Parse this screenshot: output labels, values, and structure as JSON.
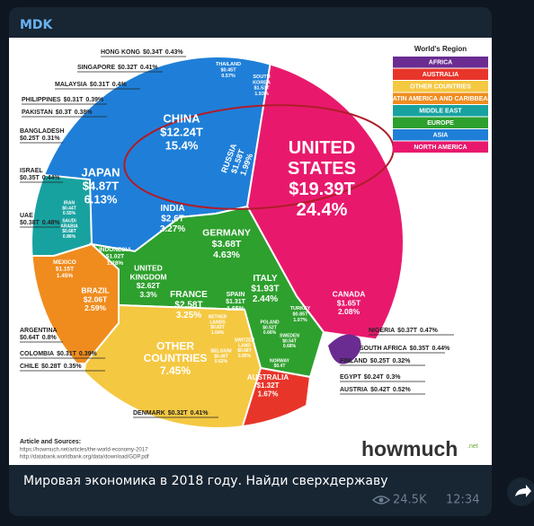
{
  "post": {
    "channel": "MDK",
    "caption": "Мировая экономика в 2018 году. Найди сверхдержаву",
    "views": "24.5K",
    "time": "12:34"
  },
  "infographic": {
    "legend_title": "World's Region",
    "regions": [
      {
        "name": "AFRICA",
        "color": "#6a2c91"
      },
      {
        "name": "AUSTRALIA",
        "color": "#e8352a"
      },
      {
        "name": "OTHER COUNTRIES",
        "color": "#f5c842"
      },
      {
        "name": "LATIN AMERICA AND CARIBBEAN",
        "color": "#f08c1e"
      },
      {
        "name": "MIDDLE EAST",
        "color": "#17a2a0"
      },
      {
        "name": "EUROPE",
        "color": "#2ea02e"
      },
      {
        "name": "ASIA",
        "color": "#1f7fd8"
      },
      {
        "name": "NORTH AMERICA",
        "color": "#e8196d"
      }
    ],
    "countries": [
      {
        "name": [
          "HONG KONG"
        ],
        "gdp": "$0.34T",
        "share": "0.43%"
      },
      {
        "name": [
          "SINGAPORE"
        ],
        "gdp": "$0.32T",
        "share": "0.41%"
      },
      {
        "name": [
          "MALAYSIA"
        ],
        "gdp": "$0.31T",
        "share": "0.4%"
      },
      {
        "name": [
          "PHILIPPINES"
        ],
        "gdp": "$0.31T",
        "share": "0.39%"
      },
      {
        "name": [
          "PAKISTAN"
        ],
        "gdp": "$0.3T",
        "share": "0.38%"
      },
      {
        "name": [
          "BANGLADESH"
        ],
        "gdp": "$0.25T",
        "share": "0.31%"
      },
      {
        "name": [
          "ISRAEL"
        ],
        "gdp": "$0.35T",
        "share": "0.44%"
      },
      {
        "name": [
          "UAE"
        ],
        "gdp": "$0.38T",
        "share": "0.48%"
      },
      {
        "name": [
          "THAILAND"
        ],
        "gdp": "$0.45T",
        "share": "0.57%"
      },
      {
        "name": [
          "SOUTH",
          "KOREA"
        ],
        "gdp": "$1.53T",
        "share": "1.93%"
      },
      {
        "name": [
          "CHINA"
        ],
        "gdp": "$12.24T",
        "share": "15.4%"
      },
      {
        "name": [
          "JAPAN"
        ],
        "gdp": "$4.87T",
        "share": "6.13%"
      },
      {
        "name": [
          "RUSSIA"
        ],
        "gdp": "$1.58T",
        "share": "1.99%"
      },
      {
        "name": [
          "IRAN"
        ],
        "gdp": "$0.44T",
        "share": "0.55%"
      },
      {
        "name": [
          "SAUDI",
          "ARABIA"
        ],
        "gdp": "$0.68T",
        "share": "0.86%"
      },
      {
        "name": [
          "INDONESIA"
        ],
        "gdp": "$1.02T",
        "share": "1.28%"
      },
      {
        "name": [
          "INDIA"
        ],
        "gdp": "$2.6T",
        "share": "3.27%"
      },
      {
        "name": [
          "UNITED",
          "STATES"
        ],
        "gdp": "$19.39T",
        "share": "24.4%"
      },
      {
        "name": [
          "CANADA"
        ],
        "gdp": "$1.65T",
        "share": "2.08%"
      },
      {
        "name": [
          "GERMANY"
        ],
        "gdp": "$3.68T",
        "share": "4.63%"
      },
      {
        "name": [
          "UNITED",
          "KINGDOM"
        ],
        "gdp": "$2.62T",
        "share": "3.3%"
      },
      {
        "name": [
          "FRANCE"
        ],
        "gdp": "$2.58T",
        "share": "3.25%"
      },
      {
        "name": [
          "ITALY"
        ],
        "gdp": "$1.93T",
        "share": "2.44%"
      },
      {
        "name": [
          "SPAIN"
        ],
        "gdp": "$1.31T",
        "share": "1.65%"
      },
      {
        "name": [
          "NETHER",
          "LANDS"
        ],
        "gdp": "$0.83T",
        "share": "1.04%"
      },
      {
        "name": [
          "BELGIUM"
        ],
        "gdp": "$0.49T",
        "share": "0.62%"
      },
      {
        "name": [
          "SWITZER",
          "LAND"
        ],
        "gdp": "$0.68T",
        "share": "0.85%"
      },
      {
        "name": [
          "POLAND"
        ],
        "gdp": "$0.52T",
        "share": "0.66%"
      },
      {
        "name": [
          "SWEDEN"
        ],
        "gdp": "$0.54T",
        "share": "0.68%"
      },
      {
        "name": [
          "TURKEY"
        ],
        "gdp": "$0.85T",
        "share": "1.07%"
      },
      {
        "name": [
          "NORWAY"
        ],
        "gdp": "$0.4T"
      },
      {
        "name": [
          "MEXICO"
        ],
        "gdp": "$1.15T",
        "share": "1.45%"
      },
      {
        "name": [
          "BRAZIL"
        ],
        "gdp": "$2.06T",
        "share": "2.59%"
      },
      {
        "name": [
          "ARGENTINA"
        ],
        "gdp": "$0.64T",
        "share": "0.8%"
      },
      {
        "name": [
          "COLOMBIA"
        ],
        "gdp": "$0.31T",
        "share": "0.39%"
      },
      {
        "name": [
          "CHILE"
        ],
        "gdp": "$0.28T",
        "share": "0.35%"
      },
      {
        "name": [
          "OTHER",
          "COUNTRIES"
        ],
        "share": "7.45%"
      },
      {
        "name": [
          "AUSTRALIA"
        ],
        "gdp": "$1.32T",
        "share": "1.67%"
      },
      {
        "name": [
          "DENMARK"
        ],
        "gdp": "$0.32T",
        "share": "0.41%"
      },
      {
        "name": [
          "NIGERIA"
        ],
        "gdp": "$0.37T",
        "share": "0.47%"
      },
      {
        "name": [
          "SOUTH AFRICA"
        ],
        "gdp": "$0.35T",
        "share": "0.44%"
      },
      {
        "name": [
          "FINLAND"
        ],
        "gdp": "$0.25T",
        "share": "0.32%"
      },
      {
        "name": [
          "EGYPT"
        ],
        "gdp": "$0.24T",
        "share": "0.3%"
      },
      {
        "name": [
          "AUSTRIA"
        ],
        "gdp": "$0.42T",
        "share": "0.52%"
      }
    ],
    "sources_title": "Article and Sources:",
    "sources": [
      "https://howmuch.net/articles/the-world-economy-2017",
      "http://databank.worldbank.org/data/download/GDP.pdf"
    ],
    "brand": "howmuch",
    "brand_suffix": ".net"
  }
}
